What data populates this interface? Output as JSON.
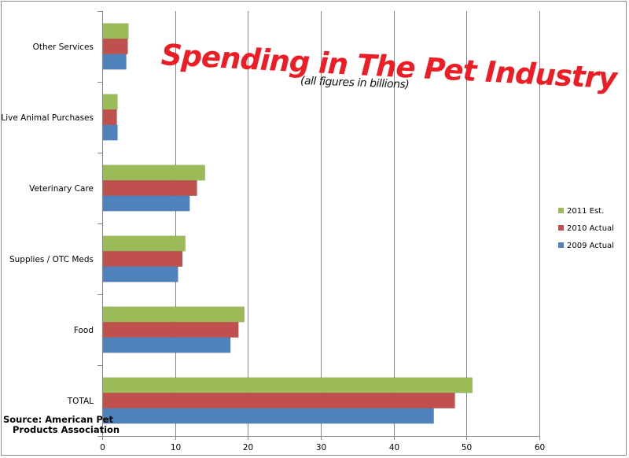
{
  "chart_data": {
    "type": "bar",
    "orientation": "horizontal",
    "title": "Spending in The Pet Industry",
    "subtitle": "(all figures in billions)",
    "source_line1": "Source: American Pet",
    "source_line2": "Products Association",
    "categories": [
      "Other Services",
      "Live Animal Purchases",
      "Veterinary Care",
      "Supplies / OTC Meds",
      "Food",
      "TOTAL"
    ],
    "series": [
      {
        "name": "2011 Est.",
        "color": "#9bbb59",
        "values": [
          3.6,
          2.1,
          14.1,
          11.4,
          19.5,
          50.8
        ]
      },
      {
        "name": "2010 Actual",
        "color": "#c0504d",
        "values": [
          3.5,
          2.0,
          13.0,
          11.0,
          18.7,
          48.4
        ]
      },
      {
        "name": "2009 Actual",
        "color": "#4f81bd",
        "values": [
          3.3,
          2.1,
          12.0,
          10.4,
          17.6,
          45.5
        ]
      }
    ],
    "xlim": [
      0,
      60
    ],
    "xticks": [
      "0",
      "10",
      "20",
      "30",
      "40",
      "50",
      "60"
    ],
    "grid": true,
    "legend": "right"
  }
}
